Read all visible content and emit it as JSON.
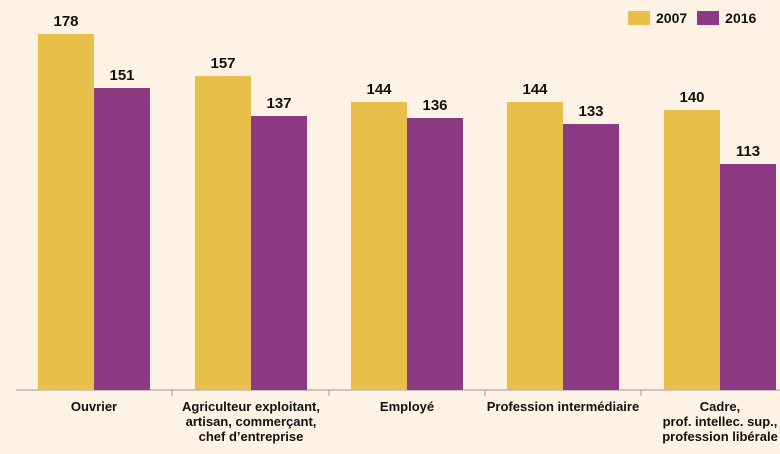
{
  "chart_data": {
    "type": "bar",
    "title": "",
    "xlabel": "",
    "ylabel": "",
    "categories": [
      [
        "Ouvrier"
      ],
      [
        "Agriculteur exploitant,",
        "artisan, commerçant,",
        "chef d’entreprise"
      ],
      [
        "Employé"
      ],
      [
        "Profession intermédiaire"
      ],
      [
        "Cadre,",
        "prof. intellec. sup.,",
        "profession libérale"
      ]
    ],
    "series": [
      {
        "name": "2007",
        "color": "#e9bf4c",
        "values": [
          178,
          157,
          144,
          144,
          140
        ]
      },
      {
        "name": "2016",
        "color": "#8b3a83",
        "values": [
          151,
          137,
          136,
          133,
          113
        ]
      }
    ],
    "ylim": [
      0,
      178
    ],
    "grid": false,
    "legend_position": "top-right",
    "data_labels": true
  }
}
